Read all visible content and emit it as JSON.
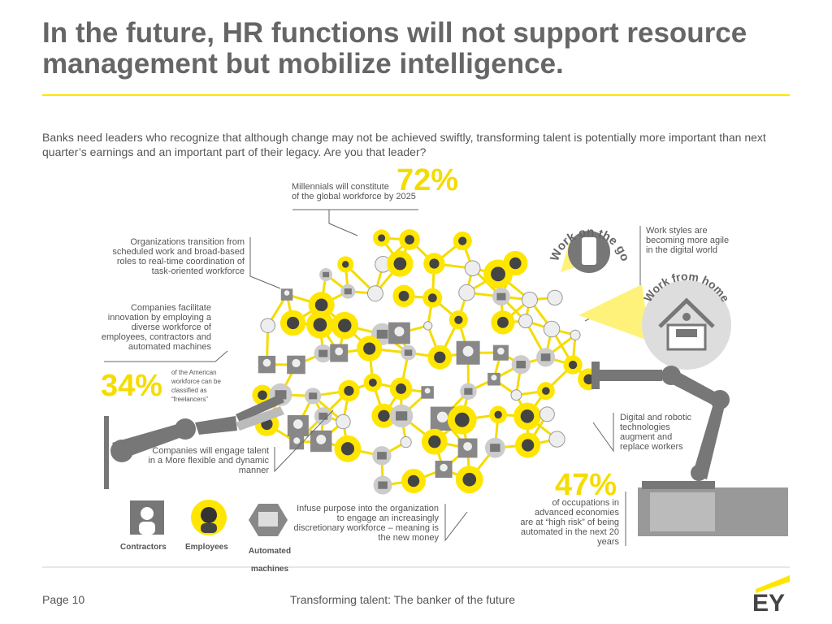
{
  "header": {
    "title_lines": [
      "In the future, HR functions will not support resource",
      "management but mobilize intelligence."
    ],
    "intro": "Banks need leaders who recognize that although change may not be achieved swiftly, transforming talent is potentially more important than next quarter’s earnings and an important part of their legacy. Are you that leader?"
  },
  "callouts": {
    "millennials": {
      "lines": [
        "Millennials will constitute",
        "of the global workforce by 2025"
      ],
      "stat": "72%"
    },
    "organizations": "Organizations transition from scheduled work and broad-based roles to real-time coordination of task-oriented workforce",
    "innovation": "Companies facilitate innovation by employing a diverse workforce of employees, contractors and automated machines",
    "freelancers": {
      "stat": "34%",
      "text": "of the American workforce can be classified as “freelancers”"
    },
    "engage": "Companies will engage talent in a More flexible and dynamic manner",
    "purpose": "Infuse purpose into the organization to engage an increasingly discretionary workforce – meaning is the new money",
    "automation": {
      "stat": "47%",
      "text": "of occupations in advanced economies are at “high risk” of being automated in the next 20 years"
    },
    "work_styles": "Work styles are becoming more agile in the digital world",
    "digital": "Digital and robotic technologies augment and replace workers"
  },
  "badges": {
    "go": "Work on the go",
    "home": "Work from home"
  },
  "legend": [
    "Contractors",
    "Employees",
    "Automated machines"
  ],
  "footer": {
    "page": "Page 10",
    "title": "Transforming talent: The banker of the future",
    "logo": "EY"
  }
}
